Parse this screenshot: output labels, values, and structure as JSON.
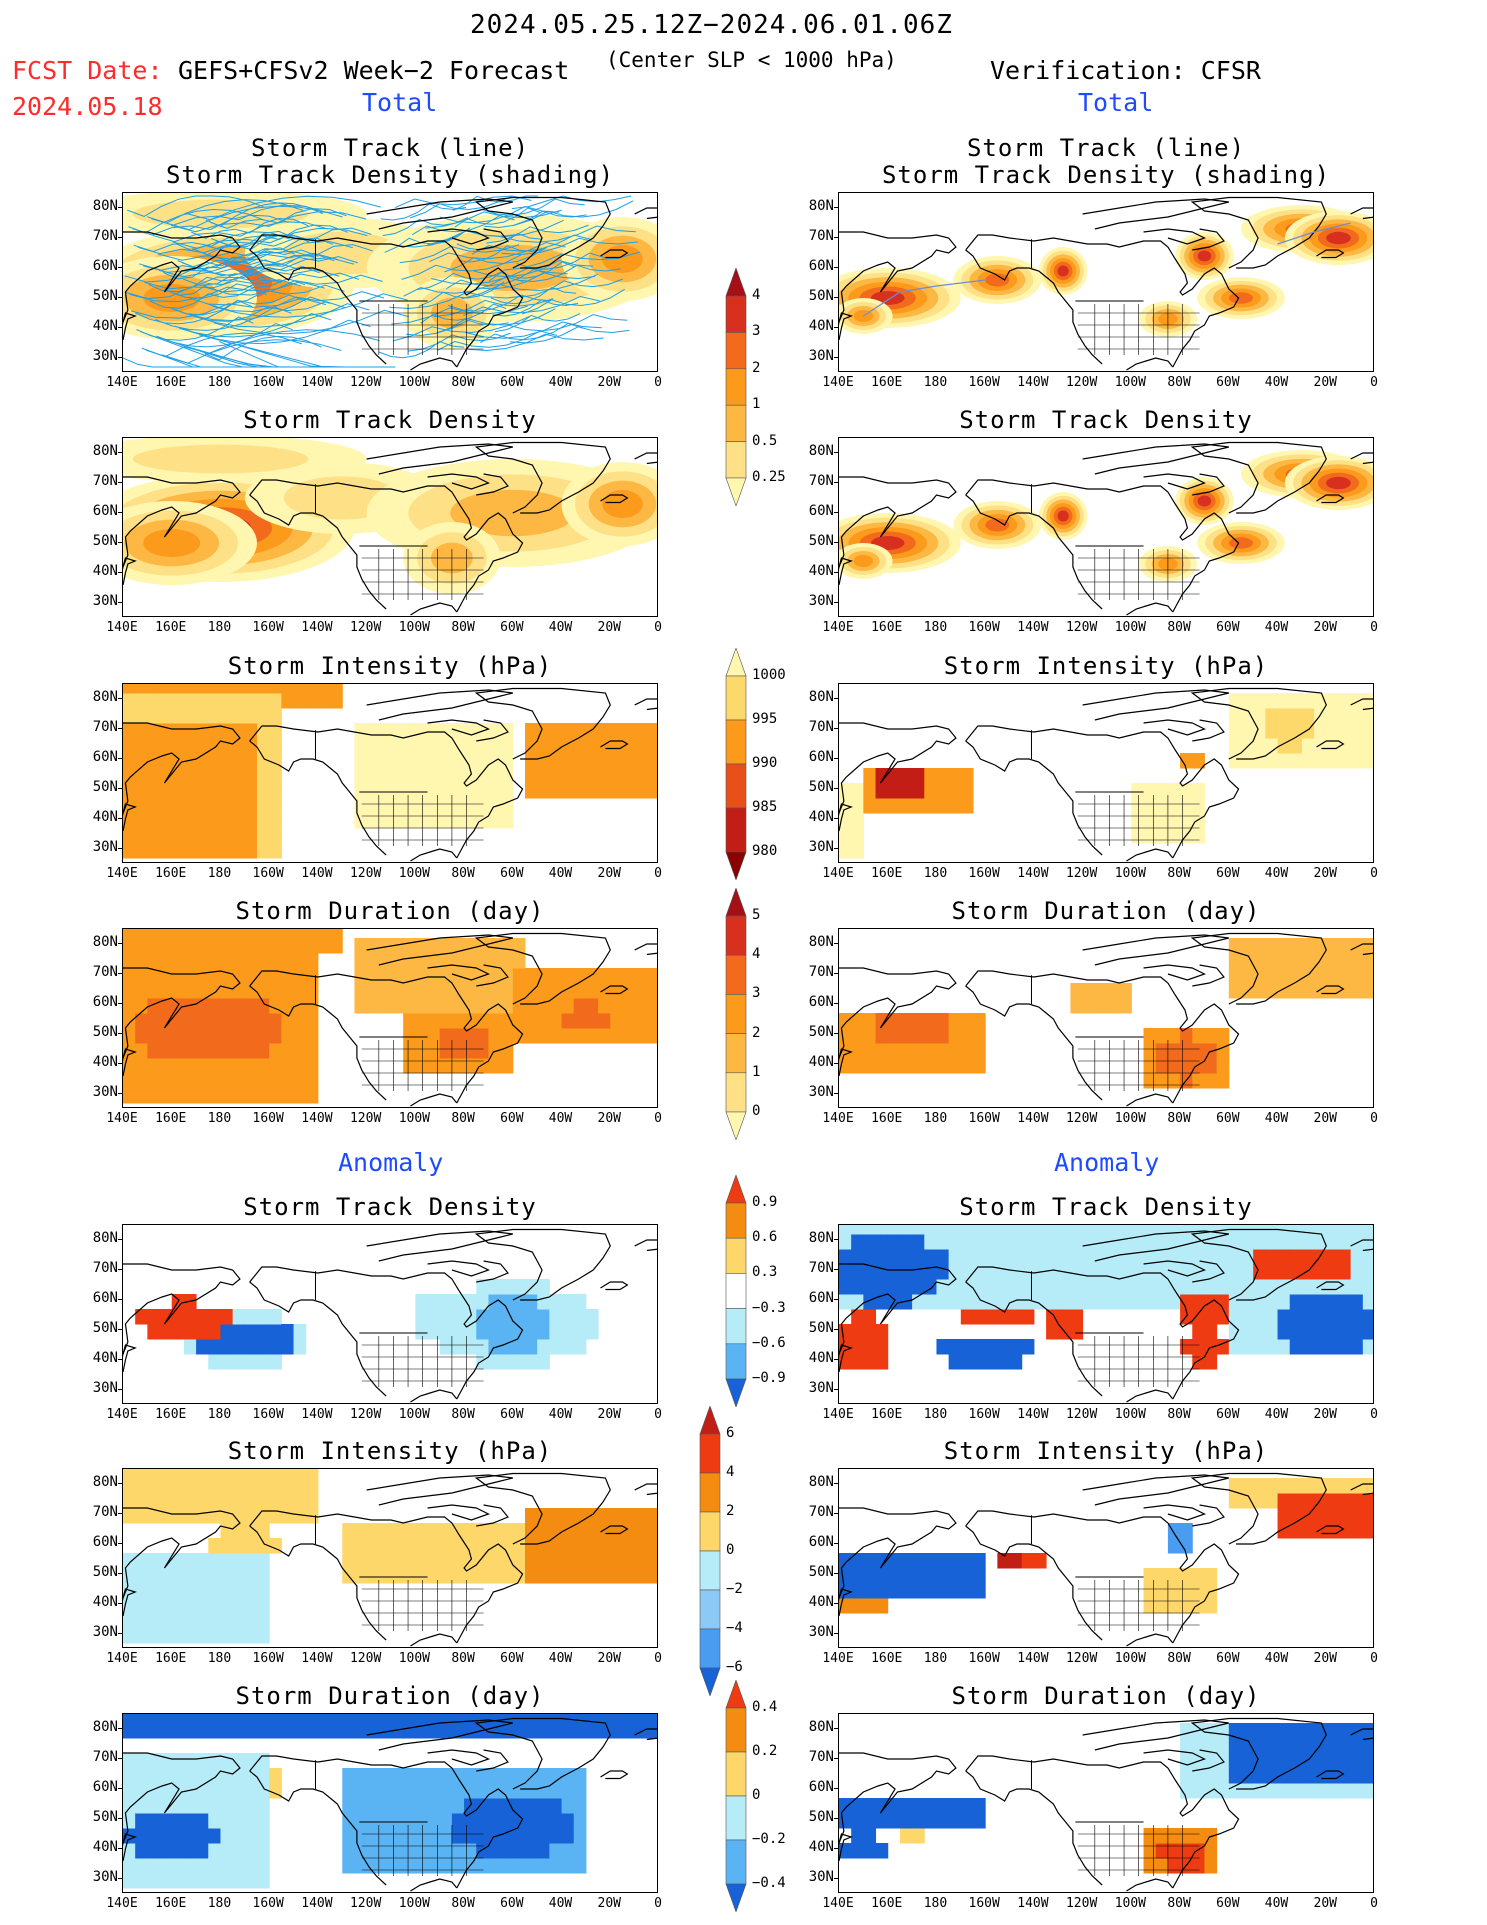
{
  "header": {
    "date_range": "2024.05.25.12Z−2024.06.01.06Z",
    "fcst_label": "FCST Date:",
    "fcst_date": "2024.05.18",
    "model": "GEFS+CFSv2 Week−2 Forecast",
    "criterion": "(Center SLP < 1000 hPa)",
    "verification": "Verification: CFSR"
  },
  "sections": {
    "total": "Total",
    "anomaly": "Anomaly"
  },
  "panel_titles": {
    "track_line": "Storm Track (line)",
    "track_shading": "Storm Track Density (shading)",
    "density": "Storm Track Density",
    "intensity": "Storm Intensity (hPa)",
    "duration": "Storm Duration (day)"
  },
  "axes": {
    "lat_ticks": [
      "80N",
      "70N",
      "60N",
      "50N",
      "40N",
      "30N"
    ],
    "lon_ticks": [
      "140E",
      "160E",
      "180",
      "160W",
      "140W",
      "120W",
      "100W",
      "80W",
      "60W",
      "40W",
      "20W",
      "0"
    ]
  },
  "colorbars": {
    "density_total": {
      "labels": [
        "4",
        "3",
        "2",
        "1",
        "0.5",
        "0.25"
      ],
      "colors": [
        "#a50f15",
        "#d7301f",
        "#f26b1d",
        "#fb9a1b",
        "#fdb844",
        "#fee187",
        "#fff6b0"
      ]
    },
    "intensity_total": {
      "labels": [
        "1000",
        "995",
        "990",
        "985",
        "980"
      ],
      "colors": [
        "#fff6b0",
        "#fdd96b",
        "#fb9a1b",
        "#e8501a",
        "#c21e16",
        "#8b0000"
      ]
    },
    "duration_total": {
      "labels": [
        "5",
        "4",
        "3",
        "2",
        "1",
        "0"
      ],
      "colors": [
        "#a50f15",
        "#d7301f",
        "#f26b1d",
        "#fb9a1b",
        "#fdb844",
        "#fee187",
        "#fff6b0"
      ]
    },
    "density_anom": {
      "labels": [
        "0.9",
        "0.6",
        "0.3",
        "−0.3",
        "−0.6",
        "−0.9"
      ],
      "colors": [
        "#ee3b12",
        "#f58c12",
        "#fed76a",
        "#ffffff",
        "#b5ecf8",
        "#5ab4f3",
        "#1662d6"
      ]
    },
    "intensity_anom": {
      "labels": [
        "6",
        "4",
        "2",
        "0",
        "−2",
        "−4",
        "−6"
      ],
      "colors": [
        "#c21e16",
        "#ee3b12",
        "#f58c12",
        "#fed76a",
        "#b5ecf8",
        "#8cc9f7",
        "#4a9cf0",
        "#1662d6"
      ]
    },
    "duration_anom": {
      "labels": [
        "0.4",
        "0.2",
        "0",
        "−0.2",
        "−0.4"
      ],
      "colors": [
        "#ee3b12",
        "#f58c12",
        "#fed76a",
        "#b5ecf8",
        "#5ab4f3",
        "#1662d6"
      ]
    }
  }
}
